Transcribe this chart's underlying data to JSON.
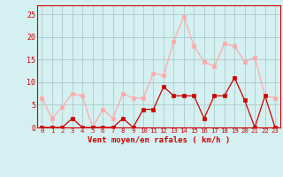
{
  "x": [
    0,
    1,
    2,
    3,
    4,
    5,
    6,
    7,
    8,
    9,
    10,
    11,
    12,
    13,
    14,
    15,
    16,
    17,
    18,
    19,
    20,
    21,
    22,
    23
  ],
  "vent_moyen": [
    0,
    0,
    0,
    2,
    0,
    0,
    0,
    0,
    2,
    0,
    4,
    4,
    9,
    7,
    7,
    7,
    2,
    7,
    7,
    11,
    6,
    0,
    7,
    0
  ],
  "en_rafales": [
    6.5,
    2,
    4.5,
    7.5,
    7,
    0,
    4,
    2,
    7.5,
    6.5,
    6.5,
    12,
    11.5,
    19,
    24.5,
    18,
    14.5,
    13.5,
    18.5,
    18,
    14.5,
    15.5,
    7,
    6.5
  ],
  "color_moyen": "#cc0000",
  "color_rafales": "#ffaaaa",
  "bg_color": "#d5f0f0",
  "grid_color": "#aacccc",
  "axis_color": "#cc0000",
  "tick_label_color": "#cc0000",
  "xlabel": "Vent moyen/en rafales ( km/h )",
  "xlabel_color": "#cc0000",
  "ylim": [
    0,
    27
  ],
  "yticks": [
    0,
    5,
    10,
    15,
    20,
    25
  ],
  "xlim": [
    -0.5,
    23.5
  ],
  "markersize": 2.5,
  "linewidth": 0.9
}
